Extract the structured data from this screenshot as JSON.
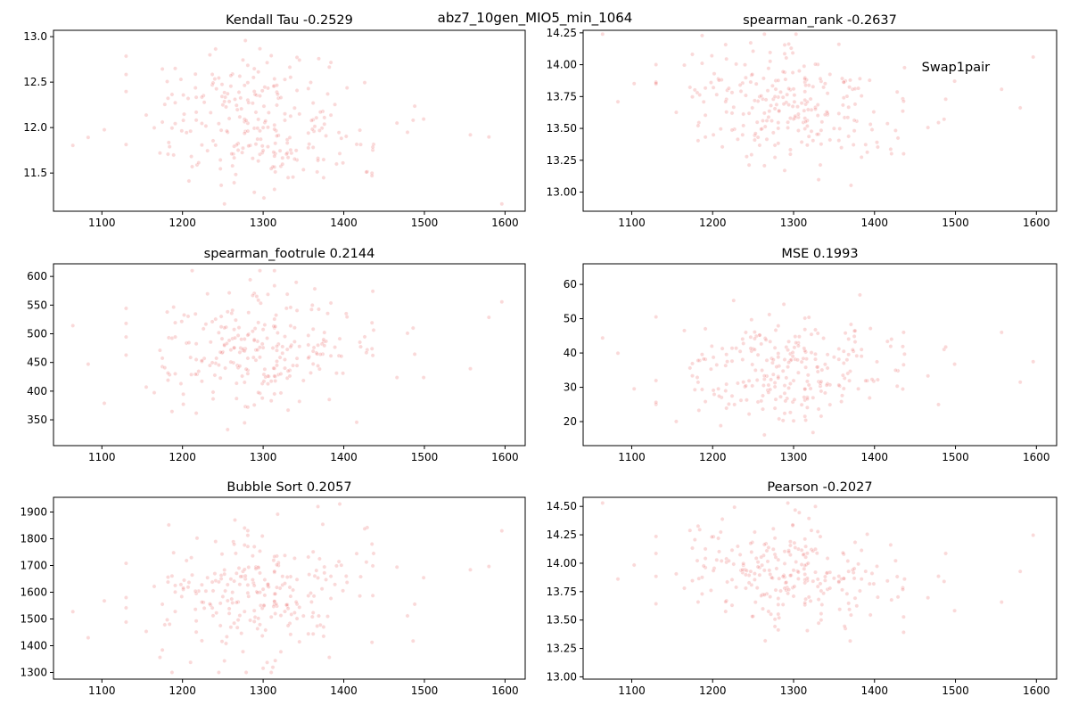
{
  "figure": {
    "suptitle": "abz7_10gen_MIO5_min_1064",
    "point_color": "#f08080",
    "point_opacity": 0.3
  },
  "chart_data": [
    {
      "type": "scatter",
      "title": "Kendall Tau -0.2529",
      "annotation": "",
      "xlim": [
        1040,
        1625
      ],
      "ylim": [
        11.08,
        13.07
      ],
      "xticks": [
        1100,
        1200,
        1300,
        1400,
        1500,
        1600
      ],
      "yticks": [
        11.5,
        12.0,
        12.5,
        13.0
      ],
      "ytick_labels": [
        "11.5",
        "12.0",
        "12.5",
        "13.0"
      ],
      "xlabel": "",
      "ylabel": "",
      "grid": false,
      "y_center": 12.03,
      "y_sd": 0.34,
      "y_min": 11.16,
      "y_max": 12.99,
      "trend": -0.00068,
      "seed": 11
    },
    {
      "type": "scatter",
      "title": "spearman_rank -0.2637",
      "annotation": "Swap1pair",
      "xlim": [
        1040,
        1625
      ],
      "ylim": [
        12.85,
        14.27
      ],
      "xticks": [
        1100,
        1200,
        1300,
        1400,
        1500,
        1600
      ],
      "yticks": [
        13.0,
        13.25,
        13.5,
        13.75,
        14.0,
        14.25
      ],
      "ytick_labels": [
        "13.00",
        "13.25",
        "13.50",
        "13.75",
        "14.00",
        "14.25"
      ],
      "xlabel": "",
      "ylabel": "",
      "grid": false,
      "y_center": 13.68,
      "y_sd": 0.23,
      "y_min": 12.92,
      "y_max": 14.24,
      "trend": -0.00048,
      "seed": 23
    },
    {
      "type": "scatter",
      "title": "spearman_footrule 0.2144",
      "annotation": "",
      "xlim": [
        1040,
        1625
      ],
      "ylim": [
        305,
        622
      ],
      "xticks": [
        1100,
        1200,
        1300,
        1400,
        1500,
        1600
      ],
      "yticks": [
        350,
        400,
        450,
        500,
        550,
        600
      ],
      "ytick_labels": [
        "350",
        "400",
        "450",
        "500",
        "550",
        "600"
      ],
      "xlabel": "",
      "ylabel": "",
      "grid": false,
      "y_center": 478,
      "y_sd": 52,
      "y_min": 318,
      "y_max": 610,
      "trend": 0.1,
      "seed": 37
    },
    {
      "type": "scatter",
      "title": "MSE 0.1993",
      "annotation": "",
      "xlim": [
        1040,
        1625
      ],
      "ylim": [
        13,
        66
      ],
      "xticks": [
        1100,
        1200,
        1300,
        1400,
        1500,
        1600
      ],
      "yticks": [
        20,
        30,
        40,
        50,
        60
      ],
      "ytick_labels": [
        "20",
        "30",
        "40",
        "50",
        "60"
      ],
      "xlabel": "",
      "ylabel": "",
      "grid": false,
      "y_center": 34.5,
      "y_sd": 7.5,
      "y_min": 15,
      "y_max": 63.5,
      "trend": 0.014,
      "seed": 51
    },
    {
      "type": "scatter",
      "title": "Bubble Sort 0.2057",
      "annotation": "",
      "xlim": [
        1040,
        1625
      ],
      "ylim": [
        1275,
        1955
      ],
      "xticks": [
        1100,
        1200,
        1300,
        1400,
        1500,
        1600
      ],
      "yticks": [
        1300,
        1400,
        1500,
        1600,
        1700,
        1800,
        1900
      ],
      "ytick_labels": [
        "1300",
        "1400",
        "1500",
        "1600",
        "1700",
        "1800",
        "1900"
      ],
      "xlabel": "",
      "ylabel": "",
      "grid": false,
      "y_center": 1600,
      "y_sd": 120,
      "y_min": 1300,
      "y_max": 1930,
      "trend": 0.22,
      "seed": 67
    },
    {
      "type": "scatter",
      "title": "Pearson -0.2027",
      "annotation": "",
      "xlim": [
        1040,
        1625
      ],
      "ylim": [
        12.98,
        14.58
      ],
      "xticks": [
        1100,
        1200,
        1300,
        1400,
        1500,
        1600
      ],
      "yticks": [
        13.0,
        13.25,
        13.5,
        13.75,
        14.0,
        14.25,
        14.5
      ],
      "ytick_labels": [
        "13.00",
        "13.25",
        "13.50",
        "13.75",
        "14.00",
        "14.25",
        "14.50"
      ],
      "xlabel": "",
      "ylabel": "",
      "grid": false,
      "y_center": 13.9,
      "y_sd": 0.22,
      "y_min": 13.05,
      "y_max": 14.53,
      "trend": -0.00042,
      "seed": 79
    }
  ]
}
